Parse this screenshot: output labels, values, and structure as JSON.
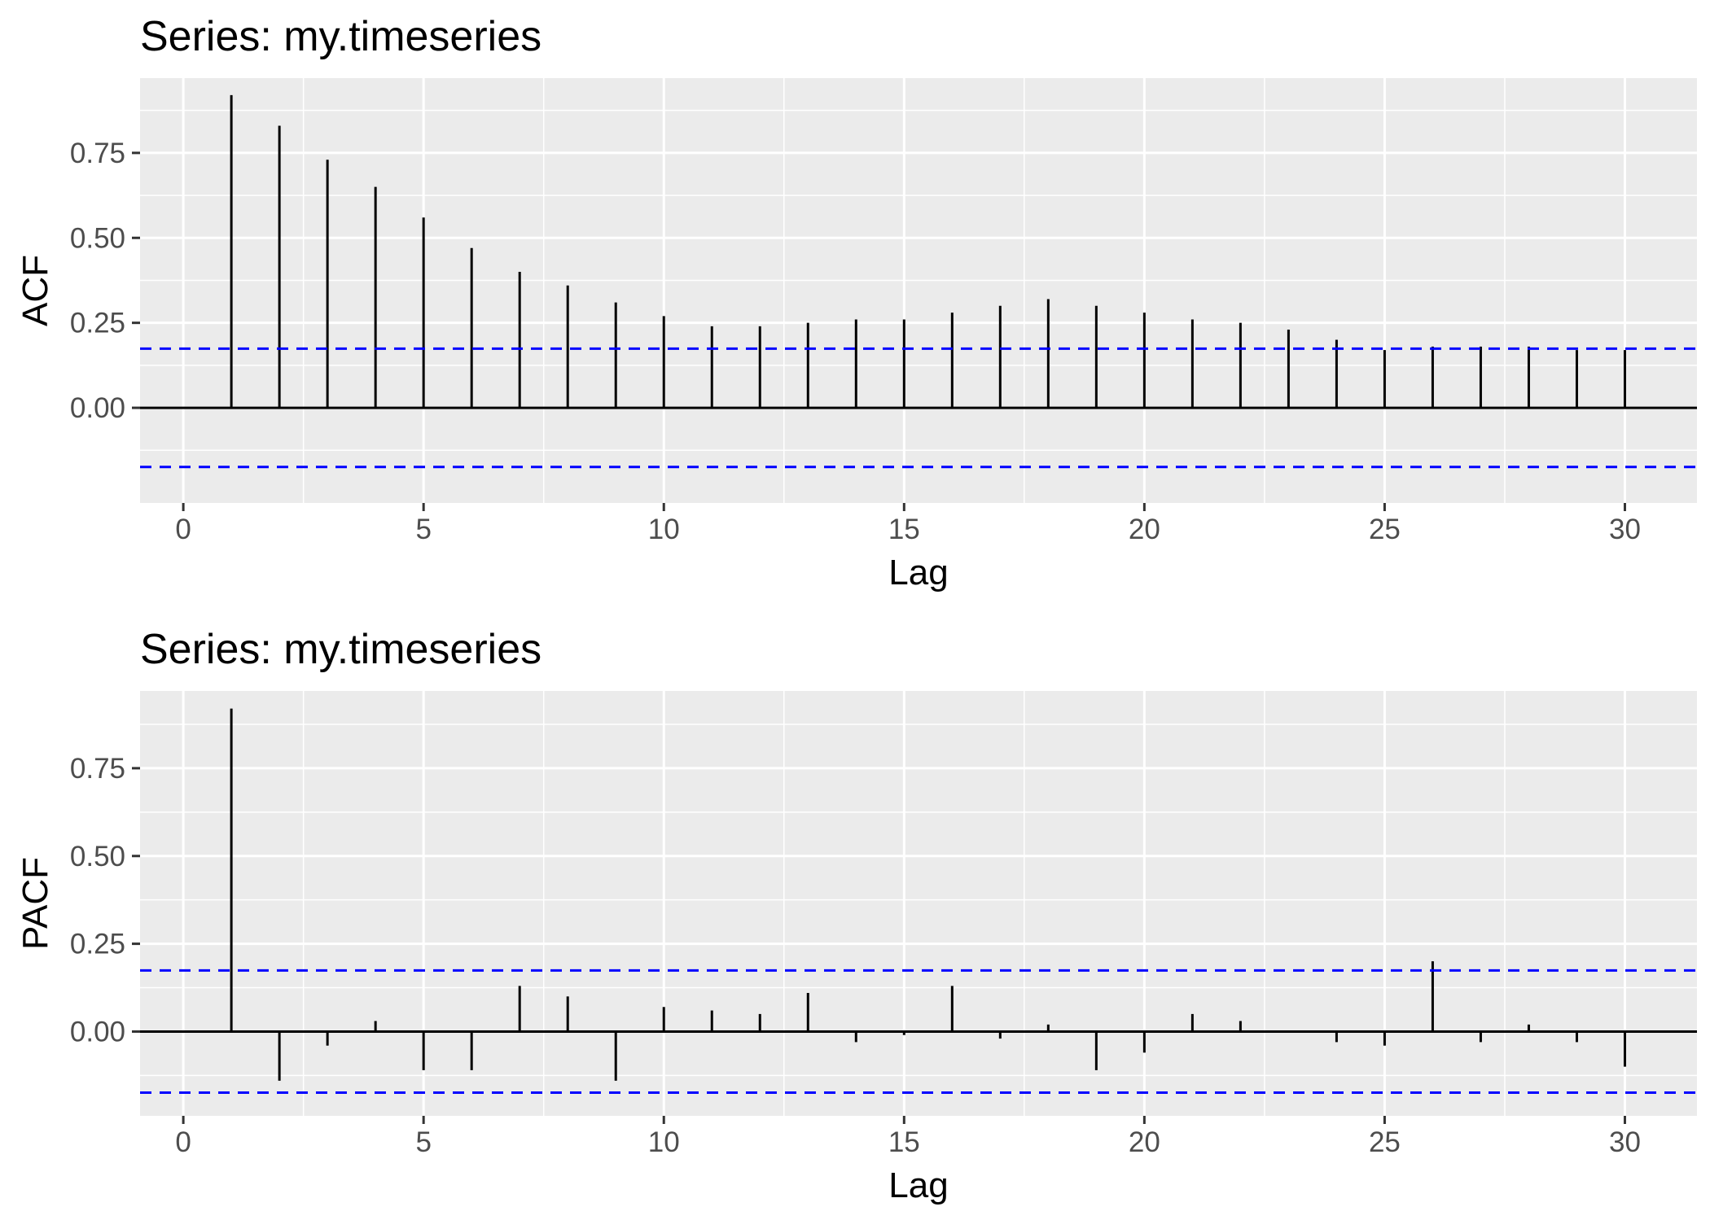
{
  "chart_data": [
    {
      "type": "bar",
      "title": "Series: my.timeseries",
      "xlabel": "Lag",
      "ylabel": "ACF",
      "xlim": [
        -0.9,
        31.5
      ],
      "ylim": [
        -0.28,
        0.97
      ],
      "x_ticks": [
        0,
        5,
        10,
        15,
        20,
        25,
        30
      ],
      "x_tick_labels": [
        "0",
        "5",
        "10",
        "15",
        "20",
        "25",
        "30"
      ],
      "y_ticks": [
        0,
        0.25,
        0.5,
        0.75
      ],
      "y_tick_labels": [
        "0.00",
        "0.25",
        "0.50",
        "0.75"
      ],
      "x": [
        1,
        2,
        3,
        4,
        5,
        6,
        7,
        8,
        9,
        10,
        11,
        12,
        13,
        14,
        15,
        16,
        17,
        18,
        19,
        20,
        21,
        22,
        23,
        24,
        25,
        26,
        27,
        28,
        29,
        30
      ],
      "values": [
        0.92,
        0.83,
        0.73,
        0.65,
        0.56,
        0.47,
        0.4,
        0.36,
        0.31,
        0.27,
        0.24,
        0.24,
        0.25,
        0.26,
        0.26,
        0.28,
        0.3,
        0.32,
        0.3,
        0.28,
        0.26,
        0.25,
        0.23,
        0.2,
        0.17,
        0.18,
        0.18,
        0.18,
        0.17,
        0.17
      ],
      "confidence_bounds": [
        0.174,
        -0.174
      ],
      "grid": true,
      "background": "#ebebeb",
      "bar_color": "#000000",
      "bound_color": "#0000ff"
    },
    {
      "type": "bar",
      "title": "Series: my.timeseries",
      "xlabel": "Lag",
      "ylabel": "PACF",
      "xlim": [
        -0.9,
        31.5
      ],
      "ylim": [
        -0.24,
        0.97
      ],
      "x_ticks": [
        0,
        5,
        10,
        15,
        20,
        25,
        30
      ],
      "x_tick_labels": [
        "0",
        "5",
        "10",
        "15",
        "20",
        "25",
        "30"
      ],
      "y_ticks": [
        0,
        0.25,
        0.5,
        0.75
      ],
      "y_tick_labels": [
        "0.00",
        "0.25",
        "0.50",
        "0.75"
      ],
      "x": [
        1,
        2,
        3,
        4,
        5,
        6,
        7,
        8,
        9,
        10,
        11,
        12,
        13,
        14,
        15,
        16,
        17,
        18,
        19,
        20,
        21,
        22,
        23,
        24,
        25,
        26,
        27,
        28,
        29,
        30
      ],
      "values": [
        0.92,
        -0.14,
        -0.04,
        0.03,
        -0.11,
        -0.11,
        0.13,
        0.1,
        -0.14,
        0.07,
        0.06,
        0.05,
        0.11,
        -0.03,
        -0.01,
        0.13,
        -0.02,
        0.02,
        -0.11,
        -0.06,
        0.05,
        0.03,
        0.0,
        -0.03,
        -0.04,
        0.2,
        -0.03,
        0.02,
        -0.03,
        -0.1
      ],
      "confidence_bounds": [
        0.174,
        -0.174
      ],
      "grid": true,
      "background": "#ebebeb",
      "bar_color": "#000000",
      "bound_color": "#0000ff"
    }
  ]
}
